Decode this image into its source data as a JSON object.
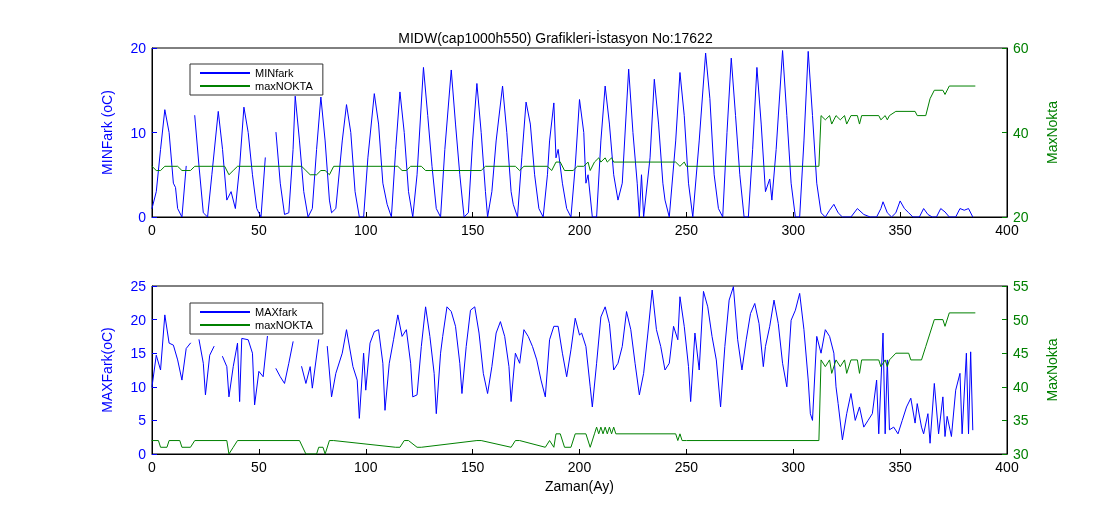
{
  "chart_data": [
    {
      "type": "line",
      "title": "MIDW(cap1000h550) Grafikleri-İstasyon No:17622",
      "ylabel": "MINFark (oC)",
      "y2label": "MaxNokta",
      "xlim": [
        0,
        400
      ],
      "xticks": [
        0,
        50,
        100,
        150,
        200,
        250,
        300,
        350,
        400
      ],
      "ylim": [
        0,
        20
      ],
      "yticks": [
        0,
        10,
        20
      ],
      "y2lim": [
        20,
        60
      ],
      "y2ticks": [
        20,
        40,
        60
      ],
      "grid": false,
      "legend": "top left",
      "marker": "none",
      "line_style": "solid",
      "series": [
        {
          "name": "MINfark",
          "color": "#0000ff",
          "x": [
            0,
            2,
            4,
            6,
            8,
            10,
            11,
            12,
            14,
            16,
            18,
            20,
            22,
            24,
            26,
            28,
            31,
            33,
            35,
            37,
            39,
            41,
            43,
            45,
            47,
            49,
            51,
            53,
            56,
            58,
            60,
            62,
            64,
            66,
            67,
            69,
            71,
            73,
            75,
            77,
            79,
            81,
            83,
            84,
            86,
            89,
            91,
            93,
            95,
            97,
            99,
            101,
            104,
            106,
            108,
            110,
            112,
            114,
            116,
            118,
            120,
            122,
            124,
            127,
            129,
            131,
            133,
            135,
            137,
            140,
            142,
            144,
            146,
            148,
            150,
            152,
            154,
            156,
            157,
            159,
            161,
            164,
            166,
            168,
            169,
            171,
            173,
            175,
            177,
            179,
            181,
            183,
            185,
            186,
            188,
            189,
            190,
            192,
            194,
            196,
            198,
            200,
            202,
            203,
            204,
            206,
            208,
            210,
            212,
            214,
            216,
            218,
            220,
            223,
            225,
            227,
            228,
            229,
            230,
            233,
            235,
            237,
            239,
            240,
            242,
            245,
            247,
            249,
            251,
            253,
            256,
            259,
            261,
            263,
            265,
            267,
            269,
            271,
            273,
            275,
            277,
            279,
            281,
            283,
            285,
            287,
            289,
            290,
            292,
            295,
            297,
            299,
            301,
            303,
            305,
            307,
            309,
            311,
            313,
            315,
            317,
            319,
            321,
            323,
            327,
            330,
            333,
            336,
            339,
            341,
            342,
            344,
            346,
            348,
            350,
            352,
            354,
            356,
            359,
            361,
            363,
            365,
            367,
            369,
            371,
            373,
            376,
            378,
            380,
            382,
            384
          ],
          "values": [
            1,
            3,
            8,
            12.7,
            10,
            4,
            3.5,
            1,
            0,
            6,
            null,
            12,
            6,
            0.5,
            0,
            5,
            12.5,
            8,
            2,
            3,
            1,
            6,
            13,
            10,
            5,
            1,
            0,
            7,
            null,
            10,
            4,
            0.3,
            0.5,
            8,
            14.3,
            9,
            3,
            0,
            1,
            8,
            14.2,
            9,
            2,
            0.5,
            1,
            9,
            13.3,
            10,
            3,
            0,
            0,
            7,
            14.6,
            11,
            4,
            1.5,
            0,
            8,
            14.8,
            10,
            3,
            0,
            5,
            17.7,
            12,
            6,
            1,
            0,
            8,
            17.4,
            11,
            5,
            0,
            0.5,
            9,
            15.8,
            10,
            3,
            0,
            3,
            9,
            15.5,
            10,
            3,
            1.5,
            0,
            7,
            13.6,
            11,
            5,
            1,
            0,
            5,
            9,
            13.5,
            7,
            8,
            4,
            1,
            0,
            6,
            13.9,
            10,
            4,
            5,
            0,
            0,
            9,
            15.5,
            11,
            5,
            2,
            4,
            17.5,
            10,
            4,
            0,
            5,
            0,
            7,
            16.3,
            11,
            4,
            2,
            0,
            9,
            17.1,
            12,
            4,
            0,
            9,
            19.4,
            14,
            5,
            1,
            0,
            10,
            18.8,
            12,
            5,
            0,
            0,
            8,
            17.7,
            11,
            3,
            4.5,
            2,
            8,
            19.7,
            12,
            4,
            0,
            0,
            9,
            19.6,
            12,
            4,
            0.5,
            0,
            0.8,
            1.5,
            0.5,
            0,
            0,
            1,
            0.3,
            0,
            0,
            1,
            1.8,
            0.5,
            0,
            0.5,
            1.9,
            1,
            0.5,
            0,
            0,
            1,
            0.3,
            0,
            0,
            1,
            0.6,
            0,
            0,
            1,
            0.8,
            1,
            0
          ]
        },
        {
          "name": "maxNOKTA",
          "color": "#008000",
          "axis": "y2",
          "x": [
            0,
            2,
            4,
            6,
            12,
            14,
            18,
            20,
            34,
            36,
            38,
            40,
            70,
            72,
            74,
            77,
            79,
            81,
            83,
            85,
            115,
            117,
            119,
            121,
            126,
            128,
            154,
            156,
            170,
            172,
            174,
            185,
            187,
            189,
            191,
            193,
            197,
            199,
            202,
            204,
            205,
            207,
            209,
            210,
            212,
            213,
            215,
            216,
            245,
            247,
            249,
            250,
            312,
            313,
            315,
            317,
            318,
            320,
            322,
            324,
            325,
            327,
            330,
            331,
            332,
            340,
            341,
            343,
            344,
            345,
            348,
            357,
            358,
            362,
            364,
            366,
            370,
            371,
            373,
            385
          ],
          "values": [
            32,
            31,
            31,
            32,
            32,
            31,
            31,
            32,
            32,
            30,
            31,
            32,
            32,
            31,
            30,
            30,
            31,
            31,
            30,
            32,
            32,
            31,
            31,
            32,
            32,
            31,
            31,
            32,
            32,
            31,
            32,
            32,
            31,
            33,
            33,
            31,
            31,
            32,
            32,
            33,
            31,
            33,
            34,
            33,
            34,
            33,
            34,
            33,
            33,
            32,
            33,
            32,
            32,
            44,
            43,
            44,
            42,
            44,
            43,
            44,
            42,
            44,
            44,
            42,
            44,
            44,
            43,
            44,
            43,
            44,
            45,
            45,
            44,
            44,
            48,
            50,
            50,
            49,
            51,
            51
          ]
        }
      ]
    },
    {
      "type": "line",
      "xlabel": "Zaman(Ay)",
      "ylabel": "MAXFark(oC)",
      "y2label": "MaxNokta",
      "xlim": [
        0,
        400
      ],
      "xticks": [
        0,
        50,
        100,
        150,
        200,
        250,
        300,
        350,
        400
      ],
      "ylim": [
        0,
        25
      ],
      "yticks": [
        0,
        5,
        10,
        15,
        20,
        25
      ],
      "y2lim": [
        30,
        55
      ],
      "y2ticks": [
        30,
        35,
        40,
        45,
        50,
        55
      ],
      "grid": false,
      "legend": "top left",
      "marker": "none",
      "line_style": "solid",
      "series": [
        {
          "name": "MAXfark",
          "color": "#0000ff",
          "x": [
            0,
            2,
            4,
            6,
            8,
            10,
            12,
            14,
            16,
            18,
            20,
            22,
            24,
            25,
            27,
            29,
            31,
            33,
            35,
            36,
            38,
            40,
            41,
            42,
            45,
            47,
            48,
            50,
            52,
            54,
            56,
            58,
            60,
            62,
            64,
            66,
            68,
            70,
            72,
            74,
            75,
            78,
            80,
            82,
            84,
            86,
            89,
            91,
            94,
            96,
            97,
            99,
            100,
            102,
            104,
            106,
            108,
            109,
            111,
            113,
            115,
            117,
            119,
            121,
            122,
            124,
            126,
            128,
            130,
            132,
            133,
            135,
            136,
            138,
            140,
            142,
            144,
            145,
            147,
            149,
            151,
            153,
            155,
            157,
            159,
            161,
            163,
            165,
            167,
            168,
            170,
            172,
            174,
            176,
            178,
            180,
            182,
            184,
            186,
            188,
            190,
            192,
            194,
            196,
            198,
            200,
            201,
            203,
            205,
            206,
            208,
            210,
            212,
            214,
            216,
            218,
            220,
            222,
            224,
            226,
            228,
            230,
            232,
            234,
            236,
            238,
            240,
            242,
            244,
            246,
            247,
            249,
            251,
            252,
            254,
            256,
            258,
            260,
            262,
            264,
            266,
            268,
            270,
            272,
            274,
            276,
            278,
            280,
            282,
            284,
            286,
            287,
            289,
            291,
            293,
            295,
            297,
            299,
            301,
            303,
            305,
            307,
            308,
            309,
            311,
            313,
            315,
            317,
            319,
            320,
            321,
            323,
            325,
            327,
            329,
            331,
            333,
            335,
            337,
            339,
            340,
            342,
            343,
            344,
            345,
            347,
            349,
            351,
            353,
            355,
            357,
            358,
            360,
            361,
            363,
            364,
            366,
            368,
            370,
            371,
            372,
            374,
            376,
            378,
            379,
            381,
            382,
            383,
            384
          ],
          "values": [
            10,
            14.7,
            12.5,
            20.7,
            16.5,
            16.2,
            14,
            11,
            15.7,
            16.5,
            null,
            17,
            13.5,
            8.8,
            14.7,
            16,
            null,
            14.5,
            13,
            8.5,
            13,
            16.5,
            7.8,
            17.2,
            17,
            15,
            7.3,
            12.3,
            11.5,
            17.5,
            null,
            12.7,
            11.5,
            10.5,
            13.5,
            16.7,
            null,
            13,
            10.5,
            13,
            9.8,
            17,
            null,
            16,
            8.5,
            12,
            15,
            18.5,
            13,
            11,
            5.3,
            15,
            9.5,
            16.5,
            18.2,
            18.5,
            13.5,
            6.5,
            13.5,
            17,
            20.7,
            17.5,
            18.5,
            13.5,
            8.5,
            8.8,
            16,
            21.9,
            17.5,
            12,
            6,
            15,
            17.5,
            21.9,
            21.2,
            19,
            13.5,
            9,
            16,
            21.4,
            21.9,
            18,
            12,
            9,
            13,
            18,
            19.7,
            17.5,
            13,
            7.8,
            15,
            13.5,
            18.5,
            17.5,
            16,
            14,
            11,
            8.5,
            17,
            19,
            19,
            15,
            11.5,
            15.5,
            20.2,
            17.7,
            18,
            16,
            10,
            7,
            13.5,
            20.4,
            21.9,
            19.4,
            12.5,
            13.5,
            16,
            21.2,
            18.5,
            13.5,
            8.8,
            12,
            18,
            24.4,
            18.5,
            16,
            12.5,
            13.5,
            19,
            17,
            23.4,
            19,
            13,
            7.8,
            18,
            12.5,
            24.2,
            21.9,
            17.5,
            14,
            7,
            16,
            22.9,
            24.9,
            17,
            12.5,
            17,
            20.9,
            22.4,
            19.4,
            13,
            16,
            19,
            22.9,
            19.4,
            13.5,
            10,
            19.9,
            21.4,
            23.9,
            18.5,
            11,
            6,
            5,
            17.5,
            15,
            18.5,
            17.5,
            15,
            10,
            7.5,
            2.1,
            6,
            9,
            5,
            7,
            4,
            5,
            6,
            11,
            3,
            18,
            3,
            14,
            3.6,
            4,
            3,
            5,
            7,
            8.3,
            4.6,
            7.5,
            4,
            3,
            6,
            1.6,
            10.5,
            3,
            8.5,
            2.6,
            5.6,
            2.6,
            9.5,
            12,
            3,
            15,
            3,
            15.2,
            3.6
          ]
        },
        {
          "name": "maxNOKTA",
          "color": "#008000",
          "axis": "y2",
          "x": [
            0,
            3,
            4,
            7,
            8,
            13,
            14,
            18,
            20,
            35,
            36,
            38,
            40,
            69,
            72,
            77,
            78,
            80,
            81,
            83,
            85,
            114,
            116,
            118,
            120,
            124,
            126,
            152,
            154,
            168,
            170,
            172,
            184,
            186,
            188,
            189,
            191,
            193,
            196,
            198,
            203,
            205,
            207,
            208,
            209,
            210,
            211,
            212,
            213,
            214,
            215,
            216,
            217,
            245,
            246,
            247,
            248,
            250,
            312,
            313,
            315,
            317,
            318,
            320,
            322,
            324,
            325,
            327,
            330,
            331,
            332,
            340,
            341,
            343,
            344,
            345,
            348,
            354,
            355,
            360,
            362,
            364,
            366,
            370,
            371,
            373,
            385
          ],
          "values": [
            32,
            32,
            31,
            31,
            32,
            32,
            31,
            31,
            32,
            32,
            30,
            31,
            32,
            32,
            30,
            30,
            31,
            31,
            30,
            32,
            32,
            31,
            31,
            32,
            32,
            31,
            31,
            32,
            32,
            31,
            32,
            32,
            31,
            32,
            31,
            33,
            33,
            31,
            31,
            33,
            33,
            31,
            33,
            34,
            33,
            34,
            33,
            34,
            33,
            34,
            33,
            34,
            33,
            33,
            32,
            33,
            32,
            32,
            32,
            44,
            43,
            44,
            42,
            44,
            43,
            44,
            42,
            44,
            44,
            42,
            44,
            44,
            43,
            44,
            43,
            44,
            45,
            45,
            44,
            44,
            46,
            48,
            50,
            50,
            49,
            51,
            51
          ]
        }
      ]
    }
  ]
}
